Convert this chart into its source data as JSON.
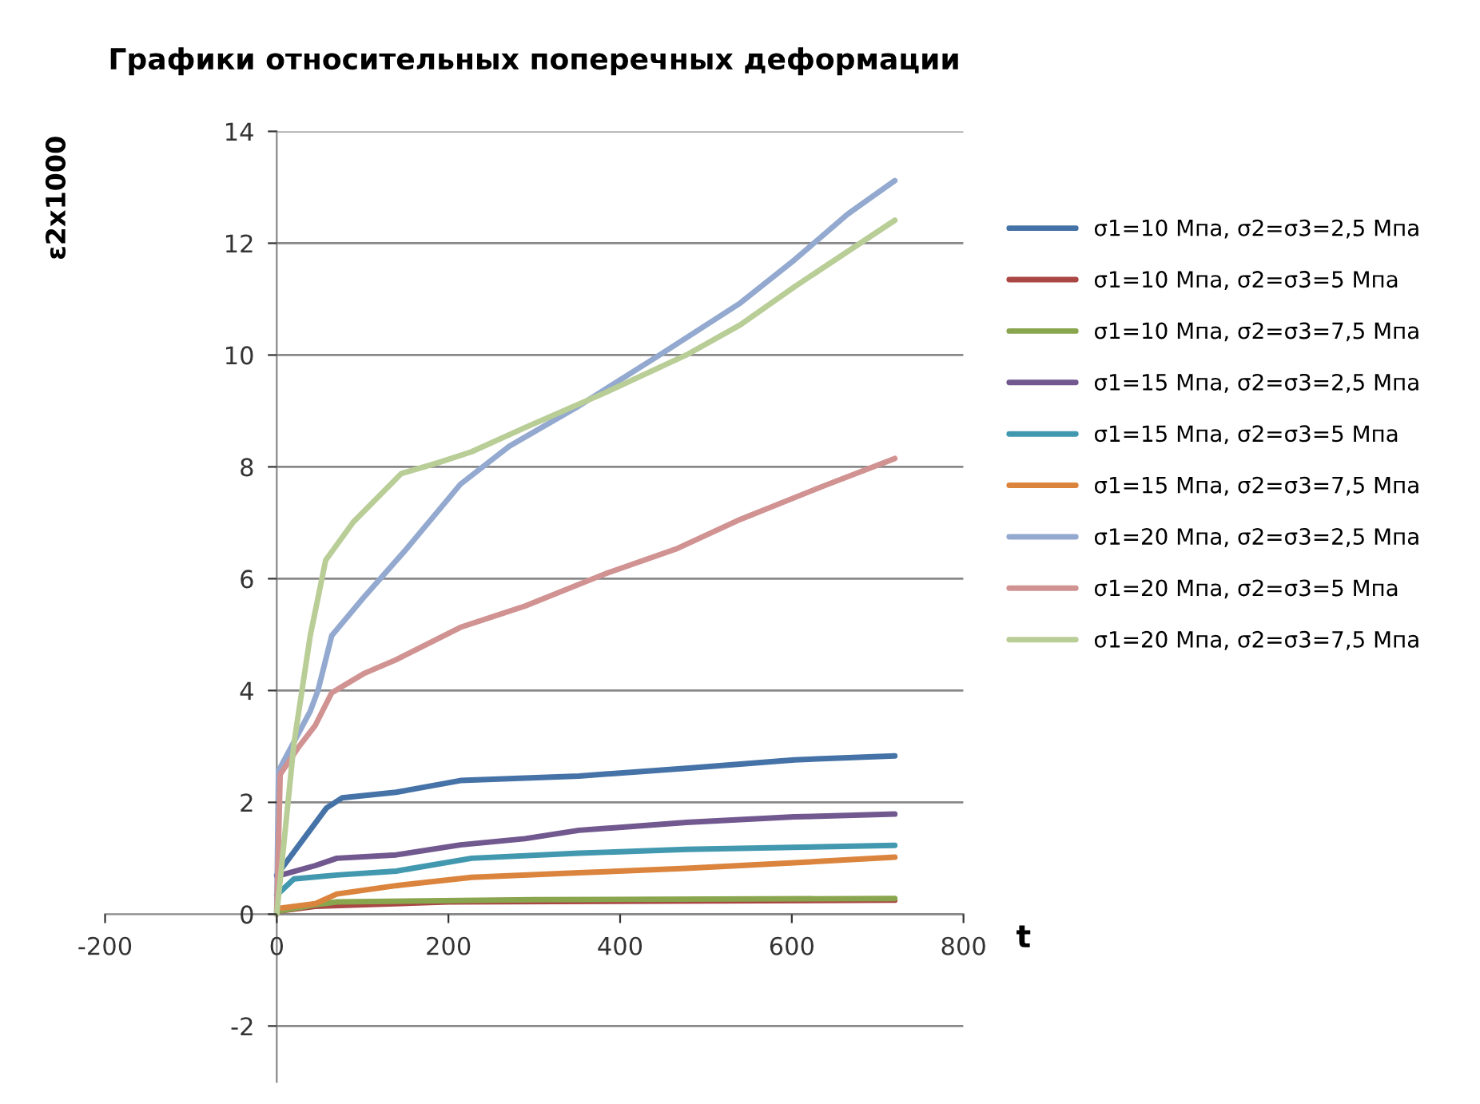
{
  "chart_data": {
    "type": "line",
    "title": "Графики относительных поперечных деформации",
    "xlabel": "t",
    "ylabel": "ε2x1000",
    "xlim": [
      -200,
      800
    ],
    "xticks": [
      -200,
      0,
      200,
      400,
      600,
      800
    ],
    "ylim": [
      -3,
      14
    ],
    "yticks": [
      -2,
      0,
      2,
      4,
      6,
      8,
      10,
      12,
      14
    ],
    "grid": "y",
    "legend": "right",
    "marker": "none",
    "line_style": "solid",
    "series": [
      {
        "name": "σ1=10 Мпа, σ2=σ3=2,5 Мпа",
        "color": "#4572a7",
        "x": [
          0,
          58,
          76,
          139,
          214,
          352,
          477,
          603,
          720
        ],
        "values": [
          0.7,
          1.9,
          2.08,
          2.18,
          2.39,
          2.47,
          2.61,
          2.76,
          2.83
        ]
      },
      {
        "name": "σ1=10 Мпа, σ2=σ3=5 Мпа",
        "color": "#aa4643",
        "x": [
          0,
          45,
          200,
          720
        ],
        "values": [
          0.05,
          0.14,
          0.22,
          0.25
        ]
      },
      {
        "name": "σ1=10 Мпа, σ2=σ3=7,5 Мпа",
        "color": "#89a54e",
        "x": [
          0,
          45,
          70,
          300,
          720
        ],
        "values": [
          0.05,
          0.17,
          0.22,
          0.26,
          0.28
        ]
      },
      {
        "name": "σ1=15 Мпа, σ2=σ3=2,5 Мпа",
        "color": "#71588f",
        "x": [
          0,
          45,
          70,
          139,
          214,
          289,
          352,
          477,
          603,
          720
        ],
        "values": [
          0.68,
          0.87,
          1.0,
          1.06,
          1.24,
          1.35,
          1.5,
          1.64,
          1.74,
          1.79
        ]
      },
      {
        "name": "σ1=15 Мпа, σ2=σ3=5 Мпа",
        "color": "#4198af",
        "x": [
          0,
          20,
          70,
          139,
          227,
          352,
          477,
          720
        ],
        "values": [
          0.34,
          0.63,
          0.7,
          0.77,
          1.0,
          1.09,
          1.16,
          1.23
        ]
      },
      {
        "name": "σ1=15 Мпа, σ2=σ3=7,5 Мпа",
        "color": "#db843d",
        "x": [
          0,
          45,
          70,
          139,
          227,
          352,
          477,
          603,
          720
        ],
        "values": [
          0.1,
          0.19,
          0.36,
          0.51,
          0.66,
          0.74,
          0.82,
          0.92,
          1.02
        ]
      },
      {
        "name": "σ1=20 Мпа, σ2=σ3=2,5 Мпа",
        "color": "#93a9cf",
        "x": [
          0,
          2,
          39,
          48,
          64,
          101,
          151,
          214,
          271,
          352,
          446,
          540,
          603,
          665,
          720
        ],
        "values": [
          0,
          2.56,
          3.63,
          4.0,
          4.98,
          5.66,
          6.53,
          7.69,
          8.37,
          9.09,
          10.0,
          10.93,
          11.7,
          12.52,
          13.12
        ]
      },
      {
        "name": "σ1=20 Мпа, σ2=σ3=5 Мпа",
        "color": "#d19392",
        "x": [
          0,
          4,
          26,
          45,
          64,
          101,
          139,
          214,
          289,
          383,
          465,
          540,
          634,
          720
        ],
        "values": [
          0,
          2.5,
          3.0,
          3.38,
          3.96,
          4.3,
          4.55,
          5.13,
          5.51,
          6.09,
          6.53,
          7.06,
          7.64,
          8.15
        ]
      },
      {
        "name": "σ1=20 Мпа, σ2=σ3=7,5 Мпа",
        "color": "#b9cd96",
        "x": [
          0,
          20,
          39,
          57,
          89,
          145,
          189,
          227,
          289,
          383,
          477,
          540,
          603,
          720
        ],
        "values": [
          0,
          3.05,
          4.98,
          6.33,
          7.01,
          7.88,
          8.08,
          8.27,
          8.7,
          9.33,
          10.0,
          10.54,
          11.22,
          12.41
        ]
      }
    ]
  }
}
